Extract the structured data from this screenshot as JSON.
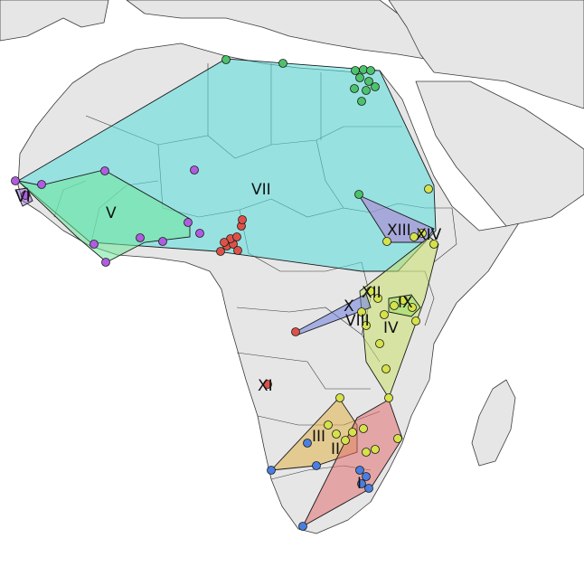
{
  "colors": {
    "land": "#e6e6e6",
    "border": "#3a3a3a",
    "water": "#ffffff"
  },
  "regions": [
    {
      "id": "VII",
      "label": "VII",
      "color": "#57dcdc"
    },
    {
      "id": "V",
      "label": "V",
      "color": "#6fe79a"
    },
    {
      "id": "VI",
      "label": "VI",
      "color": "#9a6fd6"
    },
    {
      "id": "XIII",
      "label": "XIII",
      "color": "#b27ad6"
    },
    {
      "id": "XIV",
      "label": "XIV",
      "color": "#e0e060"
    },
    {
      "id": "IV",
      "label": "IV",
      "color": "#c9e06a"
    },
    {
      "id": "IX",
      "label": "IX",
      "color": "#9be05c"
    },
    {
      "id": "X",
      "label": "X",
      "color": "#6f7fe0"
    },
    {
      "id": "XII",
      "label": "XII",
      "color": "#6f7fe0"
    },
    {
      "id": "VIII",
      "label": "VIII",
      "color": "#c9e06a"
    },
    {
      "id": "XI",
      "label": "XI",
      "color": "#e07070"
    },
    {
      "id": "III",
      "label": "III",
      "color": "#e0b24a"
    },
    {
      "id": "II",
      "label": "II",
      "color": "#e07070"
    },
    {
      "id": "I",
      "label": "I",
      "color": "#e07070"
    }
  ],
  "point_colors": {
    "green": "#4cc36a",
    "purple": "#b05ce0",
    "red": "#dd5248",
    "yellow": "#d6e24a",
    "blue": "#4a7ee0"
  }
}
